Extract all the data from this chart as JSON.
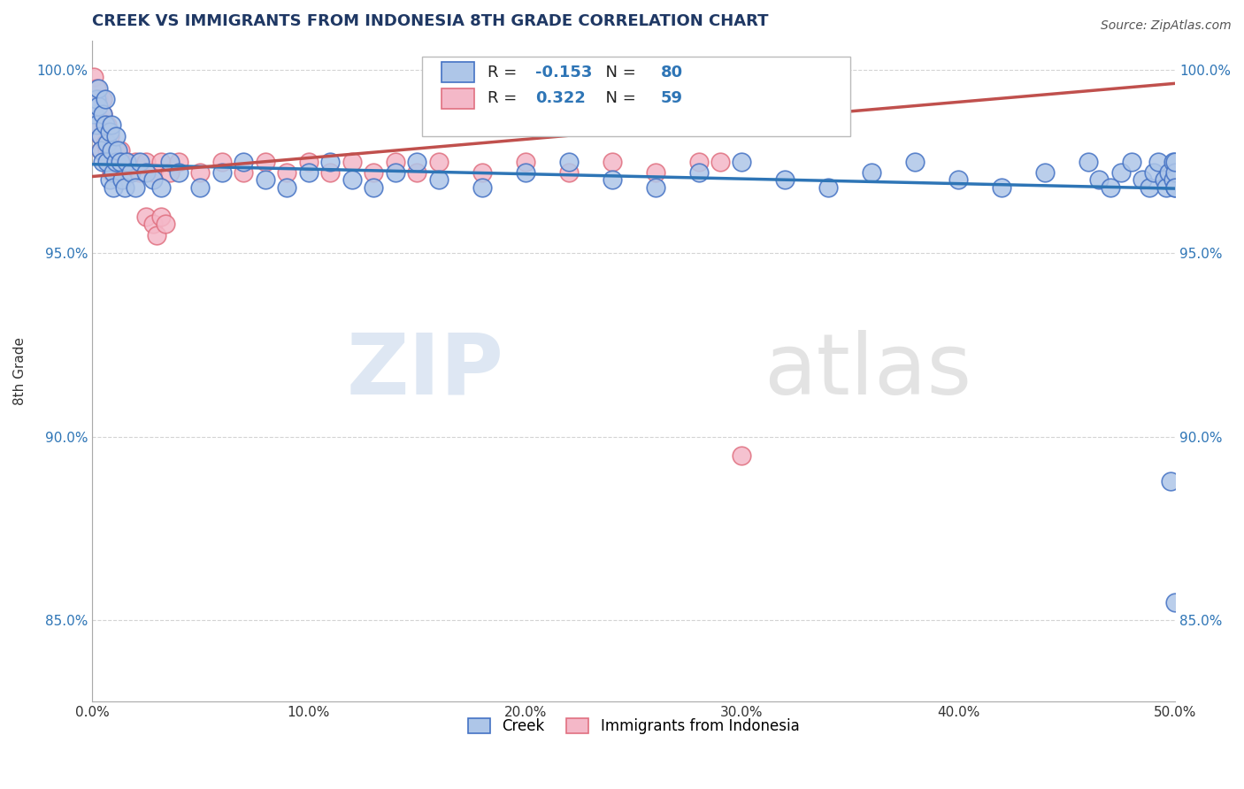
{
  "title": "CREEK VS IMMIGRANTS FROM INDONESIA 8TH GRADE CORRELATION CHART",
  "source_text": "Source: ZipAtlas.com",
  "ylabel": "8th Grade",
  "xmin": 0.0,
  "xmax": 0.5,
  "ymin": 0.828,
  "ymax": 1.008,
  "yticks": [
    0.85,
    0.9,
    0.95,
    1.0
  ],
  "ytick_labels": [
    "85.0%",
    "90.0%",
    "95.0%",
    "100.0%"
  ],
  "xticks": [
    0.0,
    0.1,
    0.2,
    0.3,
    0.4,
    0.5
  ],
  "xtick_labels": [
    "0.0%",
    "10.0%",
    "20.0%",
    "30.0%",
    "40.0%",
    "50.0%"
  ],
  "creek_color": "#aec6e8",
  "creek_edge_color": "#4472c4",
  "indonesia_color": "#f4b8c8",
  "indonesia_edge_color": "#e07080",
  "creek_R": -0.153,
  "creek_N": 80,
  "indonesia_R": 0.322,
  "indonesia_N": 59,
  "creek_line_color": "#2e75b6",
  "indonesia_line_color": "#c0504d",
  "legend_label_creek": "Creek",
  "legend_label_indonesia": "Immigrants from Indonesia",
  "watermark_zip": "ZIP",
  "watermark_atlas": "atlas",
  "background_color": "#ffffff",
  "grid_color": "#d0d0d0",
  "title_color": "#1f3864",
  "creek_scatter_x": [
    0.001,
    0.002,
    0.002,
    0.003,
    0.003,
    0.004,
    0.004,
    0.005,
    0.005,
    0.006,
    0.006,
    0.007,
    0.007,
    0.008,
    0.008,
    0.009,
    0.009,
    0.01,
    0.01,
    0.011,
    0.011,
    0.012,
    0.013,
    0.014,
    0.015,
    0.016,
    0.018,
    0.02,
    0.022,
    0.025,
    0.028,
    0.032,
    0.036,
    0.04,
    0.05,
    0.06,
    0.07,
    0.08,
    0.09,
    0.1,
    0.11,
    0.12,
    0.13,
    0.14,
    0.15,
    0.16,
    0.18,
    0.2,
    0.22,
    0.24,
    0.26,
    0.28,
    0.3,
    0.32,
    0.34,
    0.36,
    0.38,
    0.4,
    0.42,
    0.44,
    0.46,
    0.465,
    0.47,
    0.475,
    0.48,
    0.485,
    0.488,
    0.49,
    0.492,
    0.495,
    0.496,
    0.497,
    0.498,
    0.499,
    0.499,
    0.5,
    0.5,
    0.5,
    0.5,
    0.5
  ],
  "creek_scatter_y": [
    0.988,
    0.992,
    0.985,
    0.99,
    0.995,
    0.982,
    0.978,
    0.988,
    0.975,
    0.985,
    0.992,
    0.98,
    0.975,
    0.983,
    0.97,
    0.978,
    0.985,
    0.972,
    0.968,
    0.975,
    0.982,
    0.978,
    0.975,
    0.97,
    0.968,
    0.975,
    0.972,
    0.968,
    0.975,
    0.972,
    0.97,
    0.968,
    0.975,
    0.972,
    0.968,
    0.972,
    0.975,
    0.97,
    0.968,
    0.972,
    0.975,
    0.97,
    0.968,
    0.972,
    0.975,
    0.97,
    0.968,
    0.972,
    0.975,
    0.97,
    0.968,
    0.972,
    0.975,
    0.97,
    0.968,
    0.972,
    0.975,
    0.97,
    0.968,
    0.972,
    0.975,
    0.97,
    0.968,
    0.972,
    0.975,
    0.97,
    0.968,
    0.972,
    0.975,
    0.97,
    0.968,
    0.972,
    0.888,
    0.975,
    0.97,
    0.968,
    0.855,
    0.972,
    0.968,
    0.975
  ],
  "indonesia_scatter_x": [
    0.001,
    0.002,
    0.002,
    0.003,
    0.003,
    0.004,
    0.004,
    0.005,
    0.005,
    0.006,
    0.006,
    0.007,
    0.007,
    0.008,
    0.008,
    0.009,
    0.009,
    0.01,
    0.01,
    0.011,
    0.011,
    0.012,
    0.013,
    0.014,
    0.015,
    0.016,
    0.018,
    0.02,
    0.022,
    0.025,
    0.028,
    0.032,
    0.036,
    0.04,
    0.05,
    0.06,
    0.07,
    0.08,
    0.09,
    0.1,
    0.11,
    0.12,
    0.13,
    0.14,
    0.15,
    0.16,
    0.18,
    0.2,
    0.22,
    0.24,
    0.26,
    0.28,
    0.025,
    0.028,
    0.03,
    0.032,
    0.034,
    0.29,
    0.3
  ],
  "indonesia_scatter_y": [
    0.998,
    0.995,
    0.988,
    0.992,
    0.985,
    0.982,
    0.978,
    0.992,
    0.988,
    0.985,
    0.98,
    0.978,
    0.985,
    0.975,
    0.982,
    0.972,
    0.978,
    0.975,
    0.972,
    0.978,
    0.975,
    0.972,
    0.978,
    0.975,
    0.972,
    0.975,
    0.972,
    0.975,
    0.972,
    0.975,
    0.972,
    0.975,
    0.972,
    0.975,
    0.972,
    0.975,
    0.972,
    0.975,
    0.972,
    0.975,
    0.972,
    0.975,
    0.972,
    0.975,
    0.972,
    0.975,
    0.972,
    0.975,
    0.972,
    0.975,
    0.972,
    0.975,
    0.96,
    0.958,
    0.955,
    0.96,
    0.958,
    0.975,
    0.895
  ]
}
